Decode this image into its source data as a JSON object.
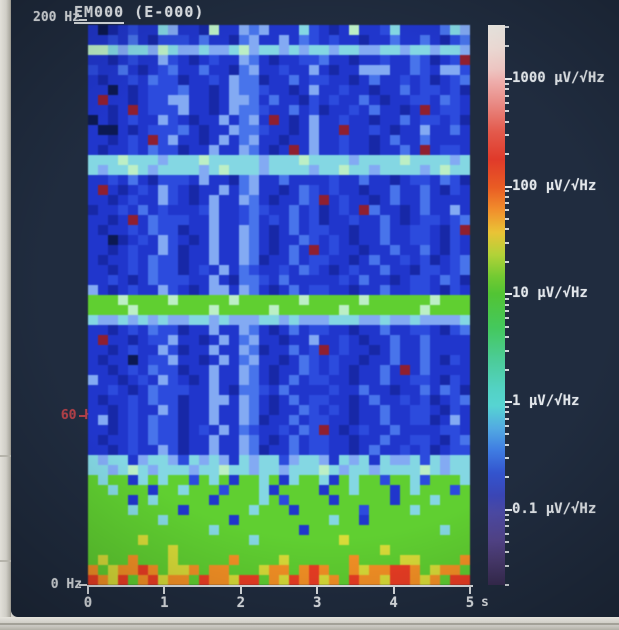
{
  "chart_data": {
    "type": "heatmap",
    "title_main": "EM000",
    "title_suffix": " (E-000)",
    "x": {
      "label_unit": "s",
      "ticks": [
        0,
        1,
        2,
        3,
        4,
        5
      ],
      "range": [
        0,
        5
      ]
    },
    "y": {
      "unit": "Hz",
      "range": [
        0,
        200
      ],
      "labels": [
        {
          "text": "200 Hz",
          "freq": 200,
          "color": "#e2e6ea"
        },
        {
          "text": "60 Hz",
          "freq": 60,
          "color": "#b04048"
        },
        {
          "text": "0 Hz",
          "freq": 0,
          "color": "#e2e6ea"
        }
      ]
    },
    "colorbar": {
      "unit": "µV/√Hz",
      "tick_values": [
        1000,
        100,
        10,
        1,
        0.1
      ],
      "log_top": 3.5,
      "log_bottom": -1.7,
      "gradient": [
        {
          "pos": 0,
          "color": "#f2efe9"
        },
        {
          "pos": 4,
          "color": "#f2e0da"
        },
        {
          "pos": 8,
          "color": "#efc6c2"
        },
        {
          "pos": 10,
          "color": "#eeaeac"
        },
        {
          "pos": 14,
          "color": "#e98a84"
        },
        {
          "pos": 19,
          "color": "#e35a4c"
        },
        {
          "pos": 24,
          "color": "#e03a2a"
        },
        {
          "pos": 29,
          "color": "#e95c24"
        },
        {
          "pos": 33,
          "color": "#f18e2c"
        },
        {
          "pos": 37,
          "color": "#eac336"
        },
        {
          "pos": 41,
          "color": "#b2d238"
        },
        {
          "pos": 45,
          "color": "#72ca32"
        },
        {
          "pos": 48,
          "color": "#52c434"
        },
        {
          "pos": 54,
          "color": "#44c85c"
        },
        {
          "pos": 60,
          "color": "#4ccc9a"
        },
        {
          "pos": 65,
          "color": "#53d2c4"
        },
        {
          "pos": 68,
          "color": "#56d4d2"
        },
        {
          "pos": 72,
          "color": "#52aae2"
        },
        {
          "pos": 76,
          "color": "#3f7ce2"
        },
        {
          "pos": 80,
          "color": "#3354ce"
        },
        {
          "pos": 84,
          "color": "#3a46b6"
        },
        {
          "pos": 87,
          "color": "#4c4aa6"
        },
        {
          "pos": 92,
          "color": "#54458c"
        },
        {
          "pos": 96,
          "color": "#493a6e"
        },
        {
          "pos": 100,
          "color": "#382c52"
        }
      ]
    },
    "grid_size": {
      "cols": 38,
      "rows": 56
    },
    "palette": {
      "k": "#0d1950",
      ".": "#1828a2",
      ",": "#2136c6",
      "-": "#2d4bd8",
      "+": "#4a74e6",
      "o": "#84aaf0",
      "c": "#87d6e2",
      "p": "#bdeec6",
      "g": "#63ce36",
      "G": "#3fae2c",
      "y": "#d9dc3e",
      "O": "#f2922a",
      "r": "#e63e26",
      "R": "#8c2030"
    },
    "promote": {
      "k": ".",
      ".": ",",
      ",": "-",
      "-": "+",
      "+": "o"
    },
    "streaks": {
      "moderate": [
        7,
        8,
        22,
        33,
        36
      ],
      "strong": [
        15,
        16
      ]
    },
    "grid_rows": [
      ",k.,-,,c+,,.p,,-,o,,,c,,.,p,,-c,,.,+co",
      ",,-,+,.,,-,+,,.,-,,o,+,,-,,.,,+,,-,.,+",
      "ppcoccopcoocoocpoccococcoccooccoccocco",
      ",,.,-,,+,,.,-,,o,,.,,-,+,,.,,-,,+,.,,R",
      "-,,+,.,,-,,+,,.,o,,-,,+,.,,ooo,,+,,oo-",
      ",.,,-,+,,.,,-,o,,.,,+,,-,,.,+,,-,,.,,+",
      ",,k,.,-,,+,,.,o,,-,,.,+,,-,,.,,+,,-,,.",
      ",R,,.,-,+o,,.,o-,,+,,.,,-,,+,.,,-,,+,,",
      ",,.,R,-,,o,,.,o,,-,,+,,.,,-,+,,.,R,-,,",
      "k,.,-,,+,,.,,o,,-,R,.,+,,-,,.,,+,,-,,.",
      ",kk,.,-,,+,.,,o,,-,,.,+,,R,,-,.,,+,,-,",
      ",,.,-,R,+,,.,o,,-,,.,,+,,-,,.,+,,-,,.,",
      ",.,,-,+,,.,,o,,-,,.,R,+,,-,,.,,+,R,-,,",
      "cccpcccocccpcccccocccpccccoccccpccccoc",
      "coccpcoccccocpcccoccccoccpccoccccocpcc",
      ",,-,+,.,,-,o,,.,-,,+,,.,-,,+,,.,-,,+,.",
      ",R,.,-,+,,.,,o,,-,,.,+,,-,,.,,+,,-,.,,",
      ",,.,-,,+,,.,o,,-,,.,,+,R,-,,.,+,,-,,.,",
      ".,,-,+,,.,,-o,,.,-,,+,,.,-,R+,,.,-,,+,",
      ",,.,R,+,,-,,o,,.,,-,+,,.,,-,,+,.,,-,,+",
      ",.,,-,+,,.,,o,,-,,.,+,,-,,.,,+,,-,,.,R",
      ",,k.,-,+,,.,o,,-,,.,,+,,-,.,,+,,-,,.,,",
      ",,.,-,,+,.,,o,,-,,.,+,R,-,,.,,+,,-,.,,",
      ",.,,-,+,,.,,o,,-,.,,+,,-,,.,+,,-,,.,,+",
      ",,.,-,+,,.,-,o,,.,,-,+,,.,-,,+,,.,-,,+",
      ",,-,.,+,,-,,o,.,,-,+,,.,,-,+,,.,-,,+,.",
      "o,.,-,,+,,.,oo,-,,.,+,,-,,.,,+,,-,,.,,",
      "gggpggggpgggggpggggggpgggggpggggggpggg",
      "ggggpgggggggpgggggpggggggpgggggggpgggg",
      "coocococooccocoooccocooocccoocoocooooc",
      ",,.,-,+,,.,,o,,-,,.,+,,-,,.,,+,,-,,.,+",
      ",R,,.,-,+,,.,o,,-,,.,,+,,-,.,,+,,-,,.,",
      ",,.,-,,+,.,,o,,-,.,,+,,R,-,,.,+,,-,,.,",
      ",.,,k,-,+,,.,o,,-,,.,+,,-,,.,,+,,-,.,,",
      ",,.,-,+,,.,,o,,-,,.,,+,,-,.,,+,R,-,,.,",
      "o,,.,-,+,,.,o,,-,,.,+,,-,,.,,+,,-,,.,,",
      ",,-,.,+,,-,,o,.,,-,+,,.,-,,+,,.,,-,+,.",
      ",.,,-,+,,.,,oo,-,,.,+,,-,,.,+,,-,,.,,+",
      ",,.,-,,+,.,,o,,-,,.,,+,,-,.,,+,,-,,.,,",
      ",o.,-,+,,.,,o,,-,.,,+,,-,,.,,+,,-,.,+,",
      ",,.,-,+,,.,-,o,,.,,-,+,R,.,-,,+,,.,-,,",
      ",.,,-,+,,.,,o,,-,,.,+,,-,,.,,+,,-,,.,+",
      ",,.,-,,+,.,,o,,-,.,,+,,-,,.,+,,-,,.,,-",
      "cocc,occo-coco,cocc-occo,coc,cooc,cocc",
      "ccocpcocccoccpccoccocccpcoccoccccpcocc",
      "gcgg,cgcgg-gcg,ggcg,cggc,gcgg-ggc,gggc",
      "ggcggg,ggcggg-gggc,gggg,ggcggg,gcggg,g",
      "gggg,gcggggg,ggggcg-gggg,ggggg,gggcggg",
      "ggggcgggg,ggggggcggg,gggggg-ggggcggggg",
      "gggggggcgggggg,gggggggggcgg,gggggggggg",
      "ggggggggggggcgggggggg,gggggggggggggcgg",
      "gggggyggggggggggcggggggggygggggggggggg",
      "ggggggggyggggggggggggggggggggygggggggg",
      "gyggOgggygggggOggggyggggggOggggyyggggO",
      "OgyOOrOgyyOgOOgggyOOgOrOggOyOOrrOgyOOg",
      "rOyrgOryOOgrOOyrrgOyrOryOgrOOyrrOyOgrr"
    ]
  }
}
